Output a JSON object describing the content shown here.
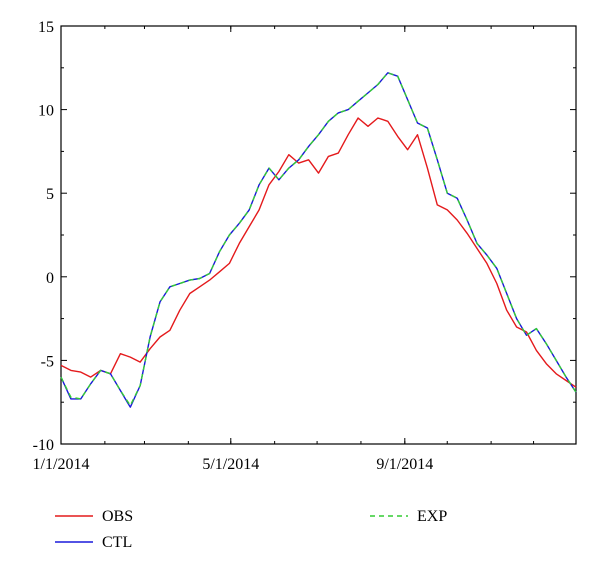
{
  "chart_data": {
    "type": "line",
    "x_ticks": [
      "1/1/2014",
      "5/1/2014",
      "9/1/2014"
    ],
    "y_ticks": [
      "15",
      "10",
      "5",
      "0",
      "-5",
      "-10"
    ],
    "xlim": [
      "2014-01-01",
      "2014-12-31"
    ],
    "ylim": [
      -10,
      15
    ],
    "grid": false,
    "legend_position": "bottom",
    "series": [
      {
        "name": "OBS",
        "color": "#e41a1c",
        "dash": "solid",
        "x": [
          "2014-01-01",
          "2014-01-08",
          "2014-01-15",
          "2014-01-22",
          "2014-01-29",
          "2014-02-05",
          "2014-02-12",
          "2014-02-19",
          "2014-02-26",
          "2014-03-05",
          "2014-03-12",
          "2014-03-19",
          "2014-03-26",
          "2014-04-02",
          "2014-04-09",
          "2014-04-16",
          "2014-04-23",
          "2014-04-30",
          "2014-05-07",
          "2014-05-14",
          "2014-05-21",
          "2014-05-28",
          "2014-06-04",
          "2014-06-11",
          "2014-06-18",
          "2014-06-25",
          "2014-07-02",
          "2014-07-09",
          "2014-07-16",
          "2014-07-23",
          "2014-07-30",
          "2014-08-06",
          "2014-08-13",
          "2014-08-20",
          "2014-08-27",
          "2014-09-03",
          "2014-09-10",
          "2014-09-17",
          "2014-09-24",
          "2014-10-01",
          "2014-10-08",
          "2014-10-15",
          "2014-10-22",
          "2014-10-29",
          "2014-11-05",
          "2014-11-12",
          "2014-11-19",
          "2014-11-26",
          "2014-12-03",
          "2014-12-10",
          "2014-12-17",
          "2014-12-24",
          "2014-12-31"
        ],
        "y": [
          -5.3,
          -5.6,
          -5.7,
          -6.0,
          -5.6,
          -5.8,
          -4.6,
          -4.8,
          -5.1,
          -4.3,
          -3.6,
          -3.2,
          -2.0,
          -1.0,
          -0.6,
          -0.2,
          0.3,
          0.8,
          2.0,
          3.0,
          4.0,
          5.5,
          6.3,
          7.3,
          6.8,
          7.0,
          6.2,
          7.2,
          7.4,
          8.5,
          9.5,
          9.0,
          9.5,
          9.3,
          8.4,
          7.6,
          8.5,
          6.5,
          4.3,
          4.0,
          3.4,
          2.6,
          1.7,
          0.8,
          -0.4,
          -2.0,
          -3.0,
          -3.3,
          -4.4,
          -5.2,
          -5.8,
          -6.2,
          -6.6
        ]
      },
      {
        "name": "CTL",
        "color": "#1a1adb",
        "dash": "solid",
        "x": [
          "2014-01-01",
          "2014-01-08",
          "2014-01-15",
          "2014-01-22",
          "2014-01-29",
          "2014-02-05",
          "2014-02-12",
          "2014-02-19",
          "2014-02-26",
          "2014-03-05",
          "2014-03-12",
          "2014-03-19",
          "2014-03-26",
          "2014-04-02",
          "2014-04-09",
          "2014-04-16",
          "2014-04-23",
          "2014-04-30",
          "2014-05-07",
          "2014-05-14",
          "2014-05-21",
          "2014-05-28",
          "2014-06-04",
          "2014-06-11",
          "2014-06-18",
          "2014-06-25",
          "2014-07-02",
          "2014-07-09",
          "2014-07-16",
          "2014-07-23",
          "2014-07-30",
          "2014-08-06",
          "2014-08-13",
          "2014-08-20",
          "2014-08-27",
          "2014-09-03",
          "2014-09-10",
          "2014-09-17",
          "2014-09-24",
          "2014-10-01",
          "2014-10-08",
          "2014-10-15",
          "2014-10-22",
          "2014-10-29",
          "2014-11-05",
          "2014-11-12",
          "2014-11-19",
          "2014-11-26",
          "2014-12-03",
          "2014-12-10",
          "2014-12-17",
          "2014-12-24",
          "2014-12-31"
        ],
        "y": [
          -6.0,
          -7.3,
          -7.3,
          -6.4,
          -5.6,
          -5.8,
          -6.8,
          -7.8,
          -6.5,
          -3.6,
          -1.5,
          -0.6,
          -0.4,
          -0.2,
          -0.1,
          0.2,
          1.5,
          2.5,
          3.2,
          4.0,
          5.5,
          6.5,
          5.8,
          6.5,
          7.0,
          7.8,
          8.5,
          9.3,
          9.8,
          10.0,
          10.5,
          11.0,
          11.5,
          12.2,
          12.0,
          10.6,
          9.2,
          8.9,
          7.0,
          5.0,
          4.7,
          3.4,
          2.0,
          1.3,
          0.5,
          -1.0,
          -2.5,
          -3.5,
          -3.1,
          -4.0,
          -5.0,
          -6.0,
          -6.9
        ]
      },
      {
        "name": "EXP",
        "color": "#33cc33",
        "dash": "dashed",
        "x": [
          "2014-01-01",
          "2014-01-08",
          "2014-01-15",
          "2014-01-22",
          "2014-01-29",
          "2014-02-05",
          "2014-02-12",
          "2014-02-19",
          "2014-02-26",
          "2014-03-05",
          "2014-03-12",
          "2014-03-19",
          "2014-03-26",
          "2014-04-02",
          "2014-04-09",
          "2014-04-16",
          "2014-04-23",
          "2014-04-30",
          "2014-05-07",
          "2014-05-14",
          "2014-05-21",
          "2014-05-28",
          "2014-06-04",
          "2014-06-11",
          "2014-06-18",
          "2014-06-25",
          "2014-07-02",
          "2014-07-09",
          "2014-07-16",
          "2014-07-23",
          "2014-07-30",
          "2014-08-06",
          "2014-08-13",
          "2014-08-20",
          "2014-08-27",
          "2014-09-03",
          "2014-09-10",
          "2014-09-17",
          "2014-09-24",
          "2014-10-01",
          "2014-10-08",
          "2014-10-15",
          "2014-10-22",
          "2014-10-29",
          "2014-11-05",
          "2014-11-12",
          "2014-11-19",
          "2014-11-26",
          "2014-12-03",
          "2014-12-10",
          "2014-12-17",
          "2014-12-24",
          "2014-12-31"
        ],
        "y": [
          -6.0,
          -7.2,
          -7.3,
          -6.4,
          -5.6,
          -5.8,
          -6.8,
          -7.7,
          -6.5,
          -3.6,
          -1.5,
          -0.6,
          -0.4,
          -0.2,
          -0.1,
          0.2,
          1.5,
          2.5,
          3.2,
          4.0,
          5.5,
          6.5,
          5.8,
          6.5,
          7.0,
          7.8,
          8.5,
          9.3,
          9.8,
          10.0,
          10.5,
          11.0,
          11.5,
          12.2,
          12.0,
          10.6,
          9.2,
          8.9,
          7.0,
          5.0,
          4.7,
          3.4,
          2.0,
          1.3,
          0.5,
          -1.0,
          -2.5,
          -3.5,
          -3.1,
          -4.0,
          -5.0,
          -6.0,
          -6.9
        ]
      }
    ]
  }
}
